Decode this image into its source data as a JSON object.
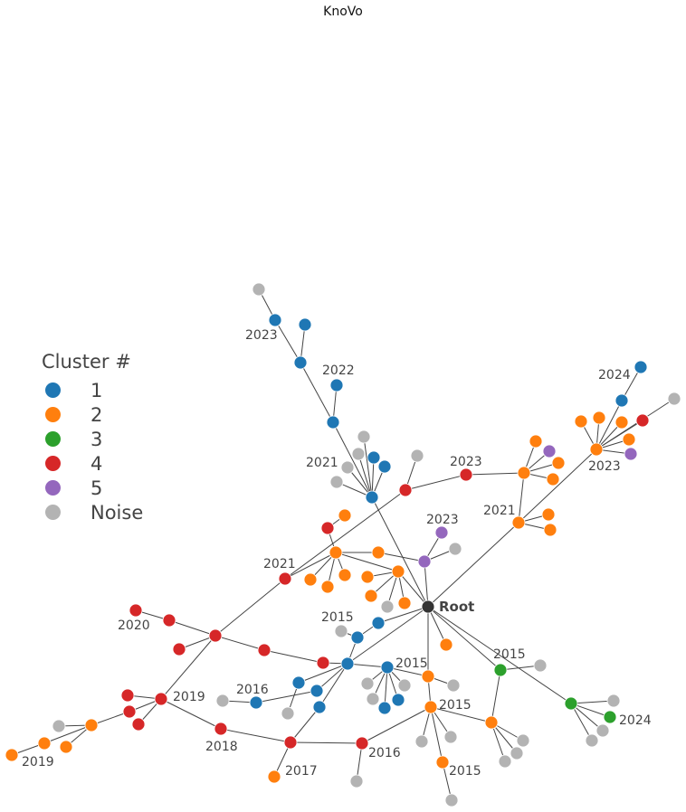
{
  "title": "KnoVo",
  "legend": {
    "title": "Cluster #",
    "items": [
      {
        "label": "1",
        "color": "#1f77b4"
      },
      {
        "label": "2",
        "color": "#ff7f0e"
      },
      {
        "label": "3",
        "color": "#2ca02c"
      },
      {
        "label": "4",
        "color": "#d62728"
      },
      {
        "label": "5",
        "color": "#9467bd"
      },
      {
        "label": "Noise",
        "color": "#b3b3b3"
      }
    ]
  },
  "colors": {
    "root": "#333333",
    "edge": "#444444"
  },
  "root_label": "Root",
  "node_labels": [
    "2023",
    "2022",
    "2024",
    "2021",
    "2023",
    "2023",
    "2021",
    "2023",
    "2021",
    "2015",
    "2015",
    "2015",
    "2016",
    "2019",
    "2020",
    "2018",
    "2024",
    "2015",
    "2016",
    "2017",
    "2015",
    "2019"
  ]
}
